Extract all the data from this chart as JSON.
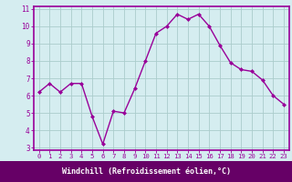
{
  "x": [
    0,
    1,
    2,
    3,
    4,
    5,
    6,
    7,
    8,
    9,
    10,
    11,
    12,
    13,
    14,
    15,
    16,
    17,
    18,
    19,
    20,
    21,
    22,
    23
  ],
  "y": [
    6.2,
    6.7,
    6.2,
    6.7,
    6.7,
    4.8,
    3.2,
    5.1,
    5.0,
    6.4,
    8.0,
    9.6,
    10.0,
    10.7,
    10.4,
    10.7,
    10.0,
    8.9,
    7.9,
    7.5,
    7.4,
    6.9,
    6.0,
    5.5
  ],
  "line_color": "#990099",
  "marker": "D",
  "marker_size": 2.0,
  "bg_color": "#d5edf0",
  "grid_color": "#aacccc",
  "xlabel": "Windchill (Refroidissement éolien,°C)",
  "xlabel_color": "#cc00cc",
  "xlabel_bg": "#660066",
  "ylim": [
    3,
    11
  ],
  "xlim": [
    -0.5,
    23.5
  ],
  "yticks": [
    3,
    4,
    5,
    6,
    7,
    8,
    9,
    10,
    11
  ],
  "xticks": [
    0,
    1,
    2,
    3,
    4,
    5,
    6,
    7,
    8,
    9,
    10,
    11,
    12,
    13,
    14,
    15,
    16,
    17,
    18,
    19,
    20,
    21,
    22,
    23
  ],
  "tick_color": "#990099",
  "spine_color": "#990099",
  "line_width": 1.0,
  "font_size_x": 5.2,
  "font_size_y": 5.5,
  "xlabel_fontsize": 6.0
}
